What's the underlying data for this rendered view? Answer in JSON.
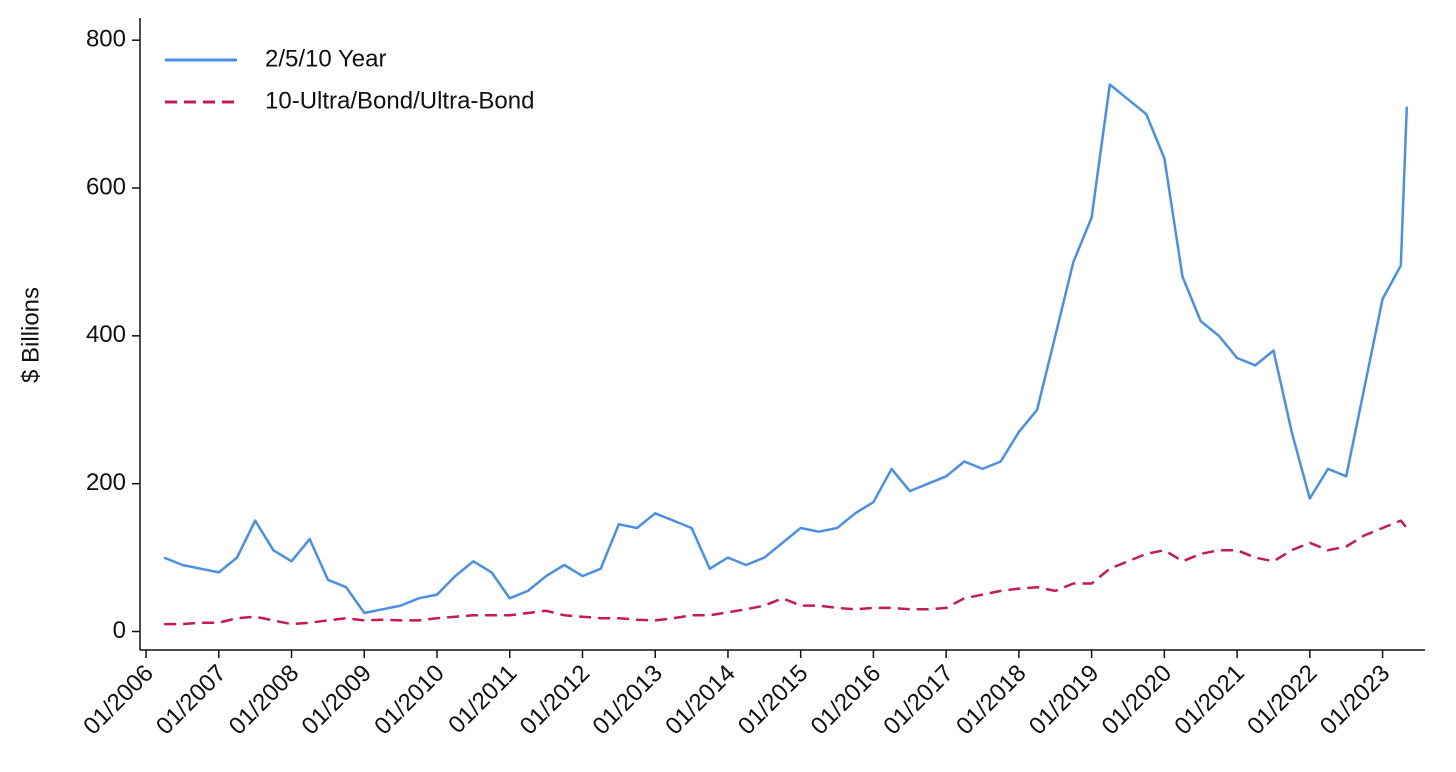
{
  "chart_data": {
    "type": "line",
    "y_label": "$ Billions",
    "x": [
      "04/2006",
      "07/2006",
      "10/2006",
      "01/2007",
      "04/2007",
      "07/2007",
      "10/2007",
      "01/2008",
      "04/2008",
      "07/2008",
      "10/2008",
      "01/2009",
      "04/2009",
      "07/2009",
      "10/2009",
      "01/2010",
      "04/2010",
      "07/2010",
      "10/2010",
      "01/2011",
      "04/2011",
      "07/2011",
      "10/2011",
      "01/2012",
      "04/2012",
      "07/2012",
      "10/2012",
      "01/2013",
      "04/2013",
      "07/2013",
      "10/2013",
      "01/2014",
      "04/2014",
      "07/2014",
      "10/2014",
      "01/2015",
      "04/2015",
      "07/2015",
      "10/2015",
      "01/2016",
      "04/2016",
      "07/2016",
      "10/2016",
      "01/2017",
      "04/2017",
      "07/2017",
      "10/2017",
      "01/2018",
      "04/2018",
      "07/2018",
      "10/2018",
      "01/2019",
      "04/2019",
      "07/2019",
      "10/2019",
      "01/2020",
      "04/2020",
      "07/2020",
      "10/2020",
      "01/2021",
      "04/2021",
      "07/2021",
      "10/2021",
      "01/2022",
      "04/2022",
      "07/2022",
      "10/2022",
      "01/2023",
      "04/2023",
      "05/2023"
    ],
    "series": [
      {
        "name": "2/5/10 Year",
        "color": "#4a8fe7",
        "dash": false,
        "values": [
          100,
          90,
          85,
          80,
          100,
          150,
          110,
          95,
          125,
          70,
          60,
          25,
          30,
          35,
          45,
          50,
          75,
          95,
          80,
          45,
          55,
          75,
          90,
          75,
          85,
          145,
          140,
          160,
          150,
          140,
          85,
          100,
          90,
          100,
          120,
          140,
          135,
          140,
          160,
          175,
          220,
          190,
          200,
          210,
          230,
          220,
          230,
          270,
          300,
          400,
          500,
          560,
          740,
          720,
          700,
          640,
          480,
          420,
          400,
          370,
          360,
          380,
          270,
          180,
          220,
          210,
          330,
          450,
          495,
          710
        ]
      },
      {
        "name": "10-Ultra/Bond/Ultra-Bond",
        "color": "#c8185a",
        "dash": true,
        "values": [
          10,
          10,
          12,
          12,
          18,
          20,
          15,
          10,
          12,
          15,
          18,
          15,
          16,
          15,
          15,
          18,
          20,
          22,
          22,
          22,
          25,
          28,
          22,
          20,
          18,
          18,
          16,
          15,
          18,
          22,
          22,
          26,
          30,
          35,
          45,
          35,
          35,
          32,
          30,
          32,
          32,
          30,
          30,
          32,
          45,
          50,
          55,
          58,
          60,
          55,
          65,
          65,
          85,
          95,
          105,
          110,
          95,
          105,
          110,
          110,
          100,
          95,
          110,
          120,
          110,
          115,
          130,
          140,
          150,
          140
        ]
      }
    ],
    "xlim": [
      "12/2005",
      "08/2023"
    ],
    "xticks": [
      "01/2006",
      "01/2007",
      "01/2008",
      "01/2009",
      "01/2010",
      "01/2011",
      "01/2012",
      "01/2013",
      "01/2014",
      "01/2015",
      "01/2016",
      "01/2017",
      "01/2018",
      "01/2019",
      "01/2020",
      "01/2021",
      "01/2022",
      "01/2023"
    ],
    "ylim": [
      -25,
      830
    ],
    "yticks": [
      0,
      200,
      400,
      600,
      800
    ],
    "grid": false,
    "legend": "top-left"
  }
}
